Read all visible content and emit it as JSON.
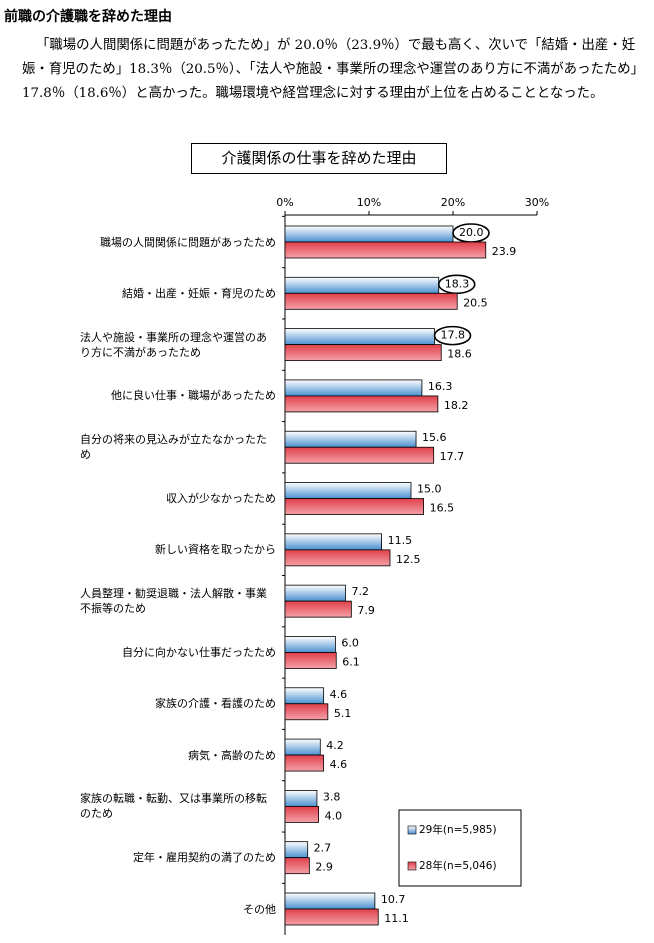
{
  "heading": "前職の介護職を辞めた理由",
  "paragraph": "「職場の人間関係に問題があったため」が 20.0％（23.9％）で最も高く、次いで「結婚・出産・妊娠・育児のため」18.3％（20.5％）、「法人や施設・事業所の理念や運営のあり方に不満があったため」17.8％（18.6％）と高かった。職場環境や経営理念に対する理由が上位を占めることとなった。",
  "chart_data": {
    "type": "hbar",
    "title": "介護関係の仕事を辞めた理由",
    "categories": [
      "職場の人間関係に問題があったため",
      "結婚・出産・妊娠・育児のため",
      "法人や施設・事業所の理念や運営のあり方に不満があったため",
      "他に良い仕事・職場があったため",
      "自分の将来の見込みが立たなかったため",
      "収入が少なかったため",
      "新しい資格を取ったから",
      "人員整理・勧奨退職・法人解散・事業不振等のため",
      "自分に向かない仕事だったため",
      "家族の介護・看護のため",
      "病気・高齢のため",
      "家族の転職・転勤、又は事業所の移転のため",
      "定年・雇用契約の満了のため",
      "その他"
    ],
    "series": [
      {
        "name": "29年(n=5,985)",
        "color": "#4a90d0",
        "values": [
          20.0,
          18.3,
          17.8,
          16.3,
          15.6,
          15.0,
          11.5,
          7.2,
          6.0,
          4.6,
          4.2,
          3.8,
          2.7,
          10.7
        ],
        "value_labels": [
          "20.0",
          "18.3",
          "17.8",
          "16.3",
          "15.6",
          "15.0",
          "11.5",
          "7.2",
          "6.0",
          "4.6",
          "4.2",
          "3.8",
          "2.7",
          "10.7"
        ]
      },
      {
        "name": "28年(n=5,046)",
        "color": "#e0404a",
        "values": [
          23.9,
          20.5,
          18.6,
          18.2,
          17.7,
          16.5,
          12.5,
          7.9,
          6.1,
          5.1,
          4.6,
          4.0,
          2.9,
          11.1
        ],
        "value_labels": [
          "23.9",
          "20.5",
          "18.6",
          "18.2",
          "17.7",
          "16.5",
          "12.5",
          "7.9",
          "6.1",
          "5.1",
          "4.6",
          "4.0",
          "2.9",
          "11.1"
        ]
      }
    ],
    "xlim": [
      0,
      30
    ],
    "xticks": [
      {
        "value": 0,
        "label": "0%"
      },
      {
        "value": 10,
        "label": "10%"
      },
      {
        "value": 20,
        "label": "20%"
      },
      {
        "value": 30,
        "label": "30%"
      }
    ],
    "legend": "lower right"
  }
}
